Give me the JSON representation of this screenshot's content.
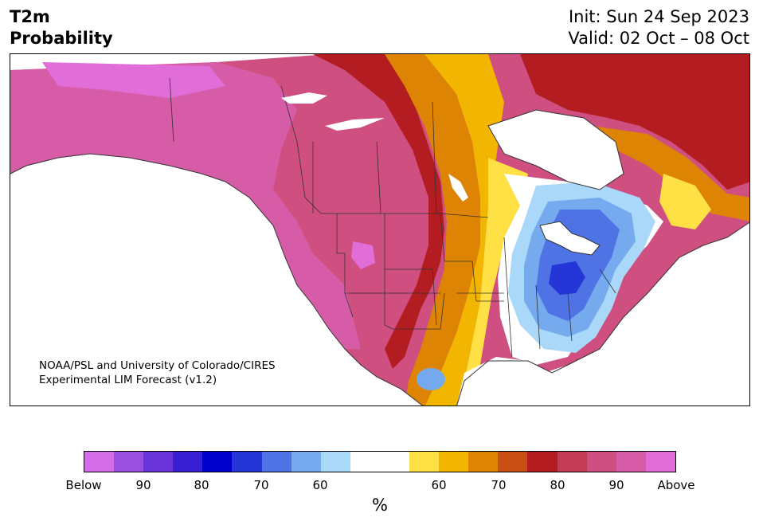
{
  "title": {
    "line1": "T2m",
    "line2": "Probability"
  },
  "init": {
    "line1": "Init: Sun 24 Sep 2023",
    "line2": "Valid: 02 Oct – 08 Oct"
  },
  "credit": {
    "line1": "NOAA/PSL and University of Colorado/CIRES",
    "line2": "Experimental LIM Forecast (v1.2)"
  },
  "colorbar": {
    "colors": [
      "#d46ee8",
      "#9b4fe0",
      "#6a35d8",
      "#3a1ed2",
      "#0000cd",
      "#2536d8",
      "#4f72e4",
      "#76aaee",
      "#aad8f8",
      "#ffffff",
      "#ffffff",
      "#ffe045",
      "#f2b600",
      "#de8404",
      "#c85014",
      "#b31d22",
      "#c23c55",
      "#cf4f80",
      "#d65ca8",
      "#e16ed8"
    ],
    "ticks": [
      "Below",
      "90",
      "80",
      "70",
      "60",
      "60",
      "70",
      "80",
      "90",
      "Above"
    ],
    "unit": "%"
  },
  "map_colors": {
    "above_max": "#e16ed8",
    "above_90": "#d65ca8",
    "above_80": "#cf4f80",
    "above_75": "#c23c55",
    "above_70": "#b31d22",
    "above_65": "#c85014",
    "above_60": "#de8404",
    "above_55": "#f2b600",
    "above_50": "#ffe045",
    "neutral": "#ffffff",
    "below_50": "#aad8f8",
    "below_60": "#76aaee",
    "below_70": "#4f72e4",
    "below_80": "#2536d8"
  }
}
